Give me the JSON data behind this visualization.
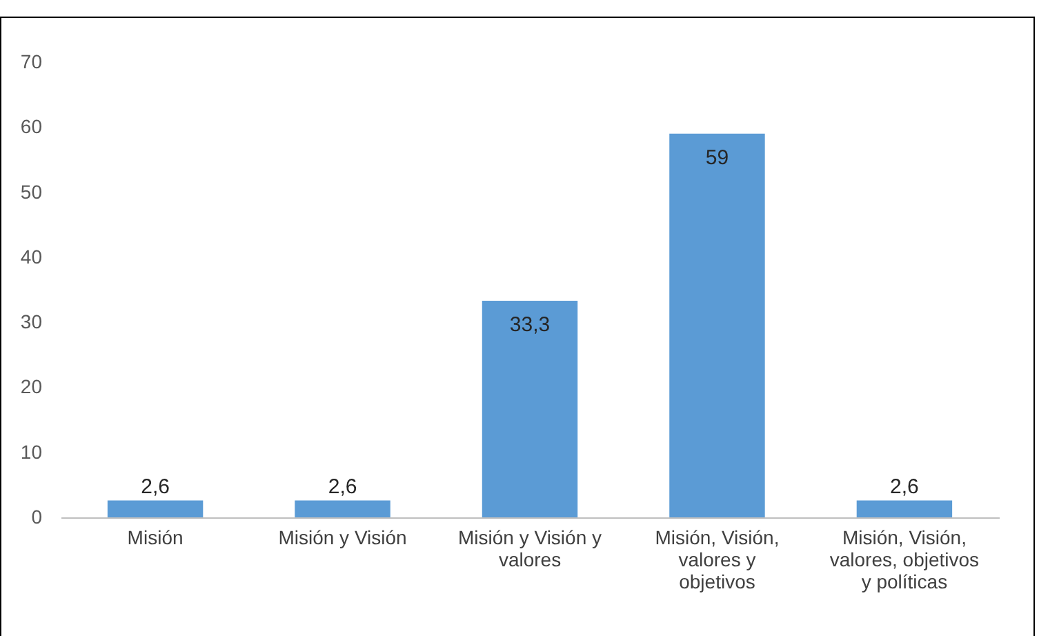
{
  "chart_data": {
    "type": "bar",
    "categories": [
      "Misión",
      "Misión y Visión",
      "Misión y Visión y valores",
      "Misión, Visión, valores y objetivos",
      "Misión, Visión, valores, objetivos y políticas"
    ],
    "values": [
      2.6,
      2.6,
      33.3,
      59,
      2.6
    ],
    "value_labels": [
      "2,6",
      "2,6",
      "33,3",
      "59",
      "2,6"
    ],
    "color": "#5b9bd5",
    "ylim": [
      0,
      70
    ],
    "yticks": [
      0,
      10,
      20,
      30,
      40,
      50,
      60,
      70
    ],
    "grid": false
  }
}
